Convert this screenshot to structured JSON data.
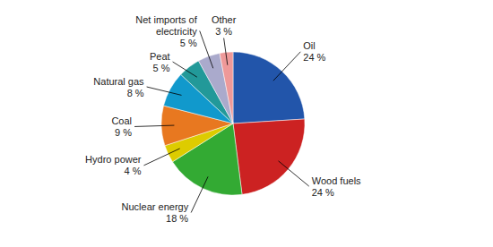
{
  "chart_data": {
    "type": "pie",
    "categories": [
      "Oil",
      "Wood fuels",
      "Nuclear energy",
      "Hydro power",
      "Coal",
      "Natural gas",
      "Peat",
      "Net imports of\nelectricity",
      "Other"
    ],
    "values": [
      24,
      24,
      18,
      4,
      9,
      8,
      5,
      5,
      3
    ],
    "value_labels": [
      "24 %",
      "24 %",
      "18 %",
      "4 %",
      "9 %",
      "8 %",
      "5 %",
      "5 %",
      "3 %"
    ],
    "colors": [
      "#2255aa",
      "#cc2222",
      "#33aa33",
      "#ddcc00",
      "#e87820",
      "#1199cc",
      "#229999",
      "#aaaacc",
      "#ee9999"
    ],
    "data_labels": true
  }
}
